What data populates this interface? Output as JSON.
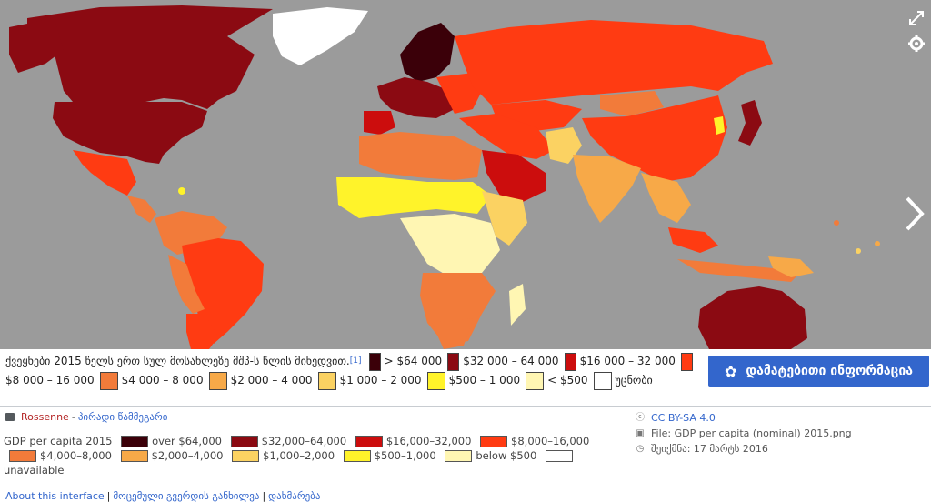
{
  "map": {
    "colors": {
      "over64k": "#3b0009",
      "k32_64": "#8b0a12",
      "k16_32": "#cc0d0d",
      "k8_16": "#ff3b12",
      "k4_8": "#f27b3a",
      "k2_4": "#f7a948",
      "k1_2": "#fbd262",
      "k05_1": "#fff32a",
      "below05": "#fff6b3",
      "unavailable": "#ffffff",
      "ocean": "#9b9b9b"
    }
  },
  "controls": {
    "expand_icon": "expand-icon",
    "settings_icon": "gear-icon",
    "next_icon": "chevron-right-icon"
  },
  "caption": {
    "text": "ქვეყნები 2015 წელს ერთ სულ მოსახლეზე მშპ-ს წლის მიხედვით.",
    "ref": "[1]",
    "legend": [
      {
        "label": "> $64 000",
        "color": "#3b0009"
      },
      {
        "label": "$32 000 – 64 000",
        "color": "#8b0a12"
      },
      {
        "label": "$16 000 – 32 000",
        "color": "#cc0d0d"
      },
      {
        "label": "$8 000 – 16 000",
        "color": "#ff3b12"
      },
      {
        "label": "$4 000 – 8 000",
        "color": "#f27b3a"
      },
      {
        "label": "$2 000 – 4 000",
        "color": "#f7a948"
      },
      {
        "label": "$1 000 – 2 000",
        "color": "#fbd262"
      },
      {
        "label": "$500 – 1 000",
        "color": "#fff32a"
      },
      {
        "label": "< $500",
        "color": "#fff6b3"
      },
      {
        "label": "უცნობი",
        "color": "#ffffff"
      }
    ]
  },
  "more_info_button": {
    "label": "დამატებითი ინფორმაცია",
    "icon": "info-icon"
  },
  "meta": {
    "author": "Rossenne",
    "separator": " - ",
    "private_message": "პირადი წამმეგარი",
    "description": {
      "title": "GDP per capita 2015",
      "legend": [
        {
          "label": "over $64,000",
          "color": "#3b0009"
        },
        {
          "label": "$32,000–64,000",
          "color": "#8b0a12"
        },
        {
          "label": "$16,000–32,000",
          "color": "#cc0d0d"
        },
        {
          "label": "$8,000–16,000",
          "color": "#ff3b12"
        },
        {
          "label": "$4,000–8,000",
          "color": "#f27b3a"
        },
        {
          "label": "$2,000–4,000",
          "color": "#f7a948"
        },
        {
          "label": "$1,000–2,000",
          "color": "#fbd262"
        },
        {
          "label": "$500–1,000",
          "color": "#fff32a"
        },
        {
          "label": "below $500",
          "color": "#fff6b3"
        },
        {
          "label": "unavailable",
          "color": "#ffffff"
        }
      ]
    },
    "license": "CC BY-SA 4.0",
    "file": "File: GDP per capita (nominal) 2015.png",
    "created": "შეიქმნა: 17 მარტს 2016"
  },
  "footer": {
    "about": "About this interface",
    "discuss": "მოცემული გვერდის განხილვა",
    "help": "დახმარება"
  }
}
